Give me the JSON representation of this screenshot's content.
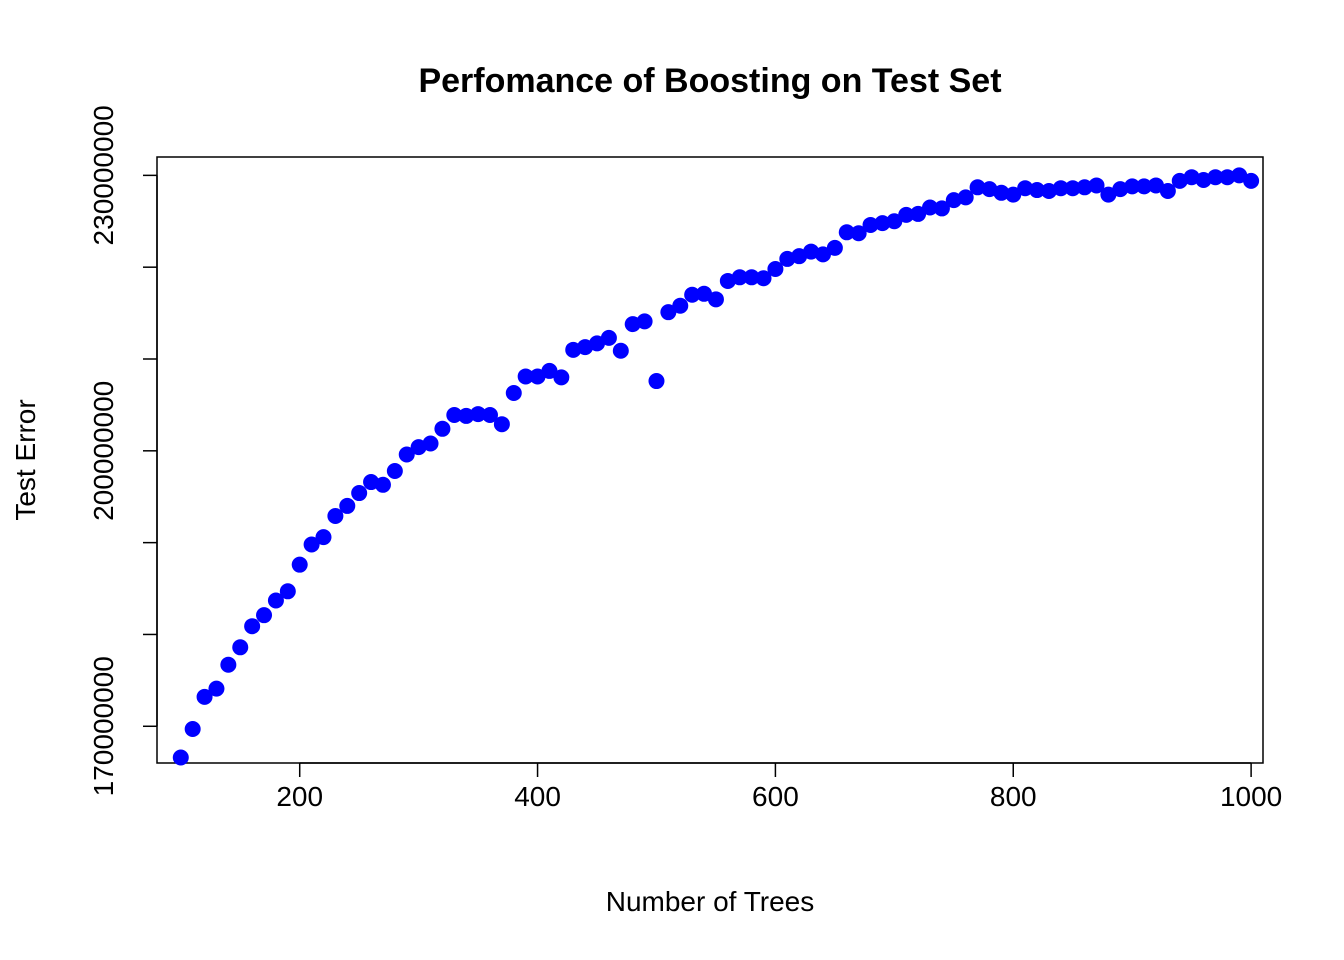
{
  "chart_data": {
    "type": "scatter",
    "title": "Perfomance of Boosting on Test Set",
    "xlabel": "Number of Trees",
    "ylabel": "Test Error",
    "xlim": [
      80,
      1010
    ],
    "ylim": [
      166000000,
      232000000
    ],
    "x_ticks": [
      200,
      400,
      600,
      800,
      1000
    ],
    "x_tick_labels": [
      "200",
      "400",
      "600",
      "800",
      "1000"
    ],
    "y_ticks": [
      170000000,
      180000000,
      190000000,
      200000000,
      210000000,
      220000000,
      230000000
    ],
    "y_tick_labels": [
      "170000000",
      "",
      "",
      "200000000",
      "",
      "",
      "230000000"
    ],
    "grid": false,
    "legend": "none",
    "point_color": "#0000FF",
    "series": [
      {
        "x": [
          100,
          110,
          120,
          130,
          140,
          150,
          160,
          170,
          180,
          190,
          200,
          210,
          220,
          230,
          240,
          250,
          260,
          270,
          280,
          290,
          300,
          310,
          320,
          330,
          340,
          350,
          360,
          370,
          380,
          390,
          400,
          410,
          420,
          430,
          440,
          450,
          460,
          470,
          480,
          490,
          500,
          510,
          520,
          530,
          540,
          550,
          560,
          570,
          580,
          590,
          600,
          610,
          620,
          630,
          640,
          650,
          660,
          670,
          680,
          690,
          700,
          710,
          720,
          730,
          740,
          750,
          760,
          770,
          780,
          790,
          800,
          810,
          820,
          830,
          840,
          850,
          860,
          870,
          880,
          890,
          900,
          910,
          920,
          930,
          940,
          950,
          960,
          970,
          980,
          990,
          1000
        ],
        "y": [
          166600000,
          169700000,
          173200000,
          174100000,
          176700000,
          178600000,
          180900000,
          182100000,
          183700000,
          184700000,
          187600000,
          189800000,
          190600000,
          192900000,
          194000000,
          195400000,
          196600000,
          196300000,
          197800000,
          199600000,
          200400000,
          200800000,
          202400000,
          203900000,
          203800000,
          204000000,
          203900000,
          202900000,
          206300000,
          208100000,
          208100000,
          208700000,
          208000000,
          211000000,
          211300000,
          211700000,
          212300000,
          210900000,
          213800000,
          214100000,
          207600000,
          215100000,
          215800000,
          217000000,
          217100000,
          216500000,
          218500000,
          218900000,
          218900000,
          218800000,
          219800000,
          220900000,
          221200000,
          221700000,
          221400000,
          222100000,
          223800000,
          223700000,
          224600000,
          224800000,
          225000000,
          225700000,
          225800000,
          226500000,
          226400000,
          227300000,
          227600000,
          228700000,
          228500000,
          228100000,
          227900000,
          228600000,
          228400000,
          228300000,
          228600000,
          228600000,
          228700000,
          228900000,
          227900000,
          228500000,
          228800000,
          228800000,
          228900000,
          228300000,
          229400000,
          229800000,
          229500000,
          229800000,
          229800000,
          230000000,
          229400000
        ]
      }
    ]
  }
}
